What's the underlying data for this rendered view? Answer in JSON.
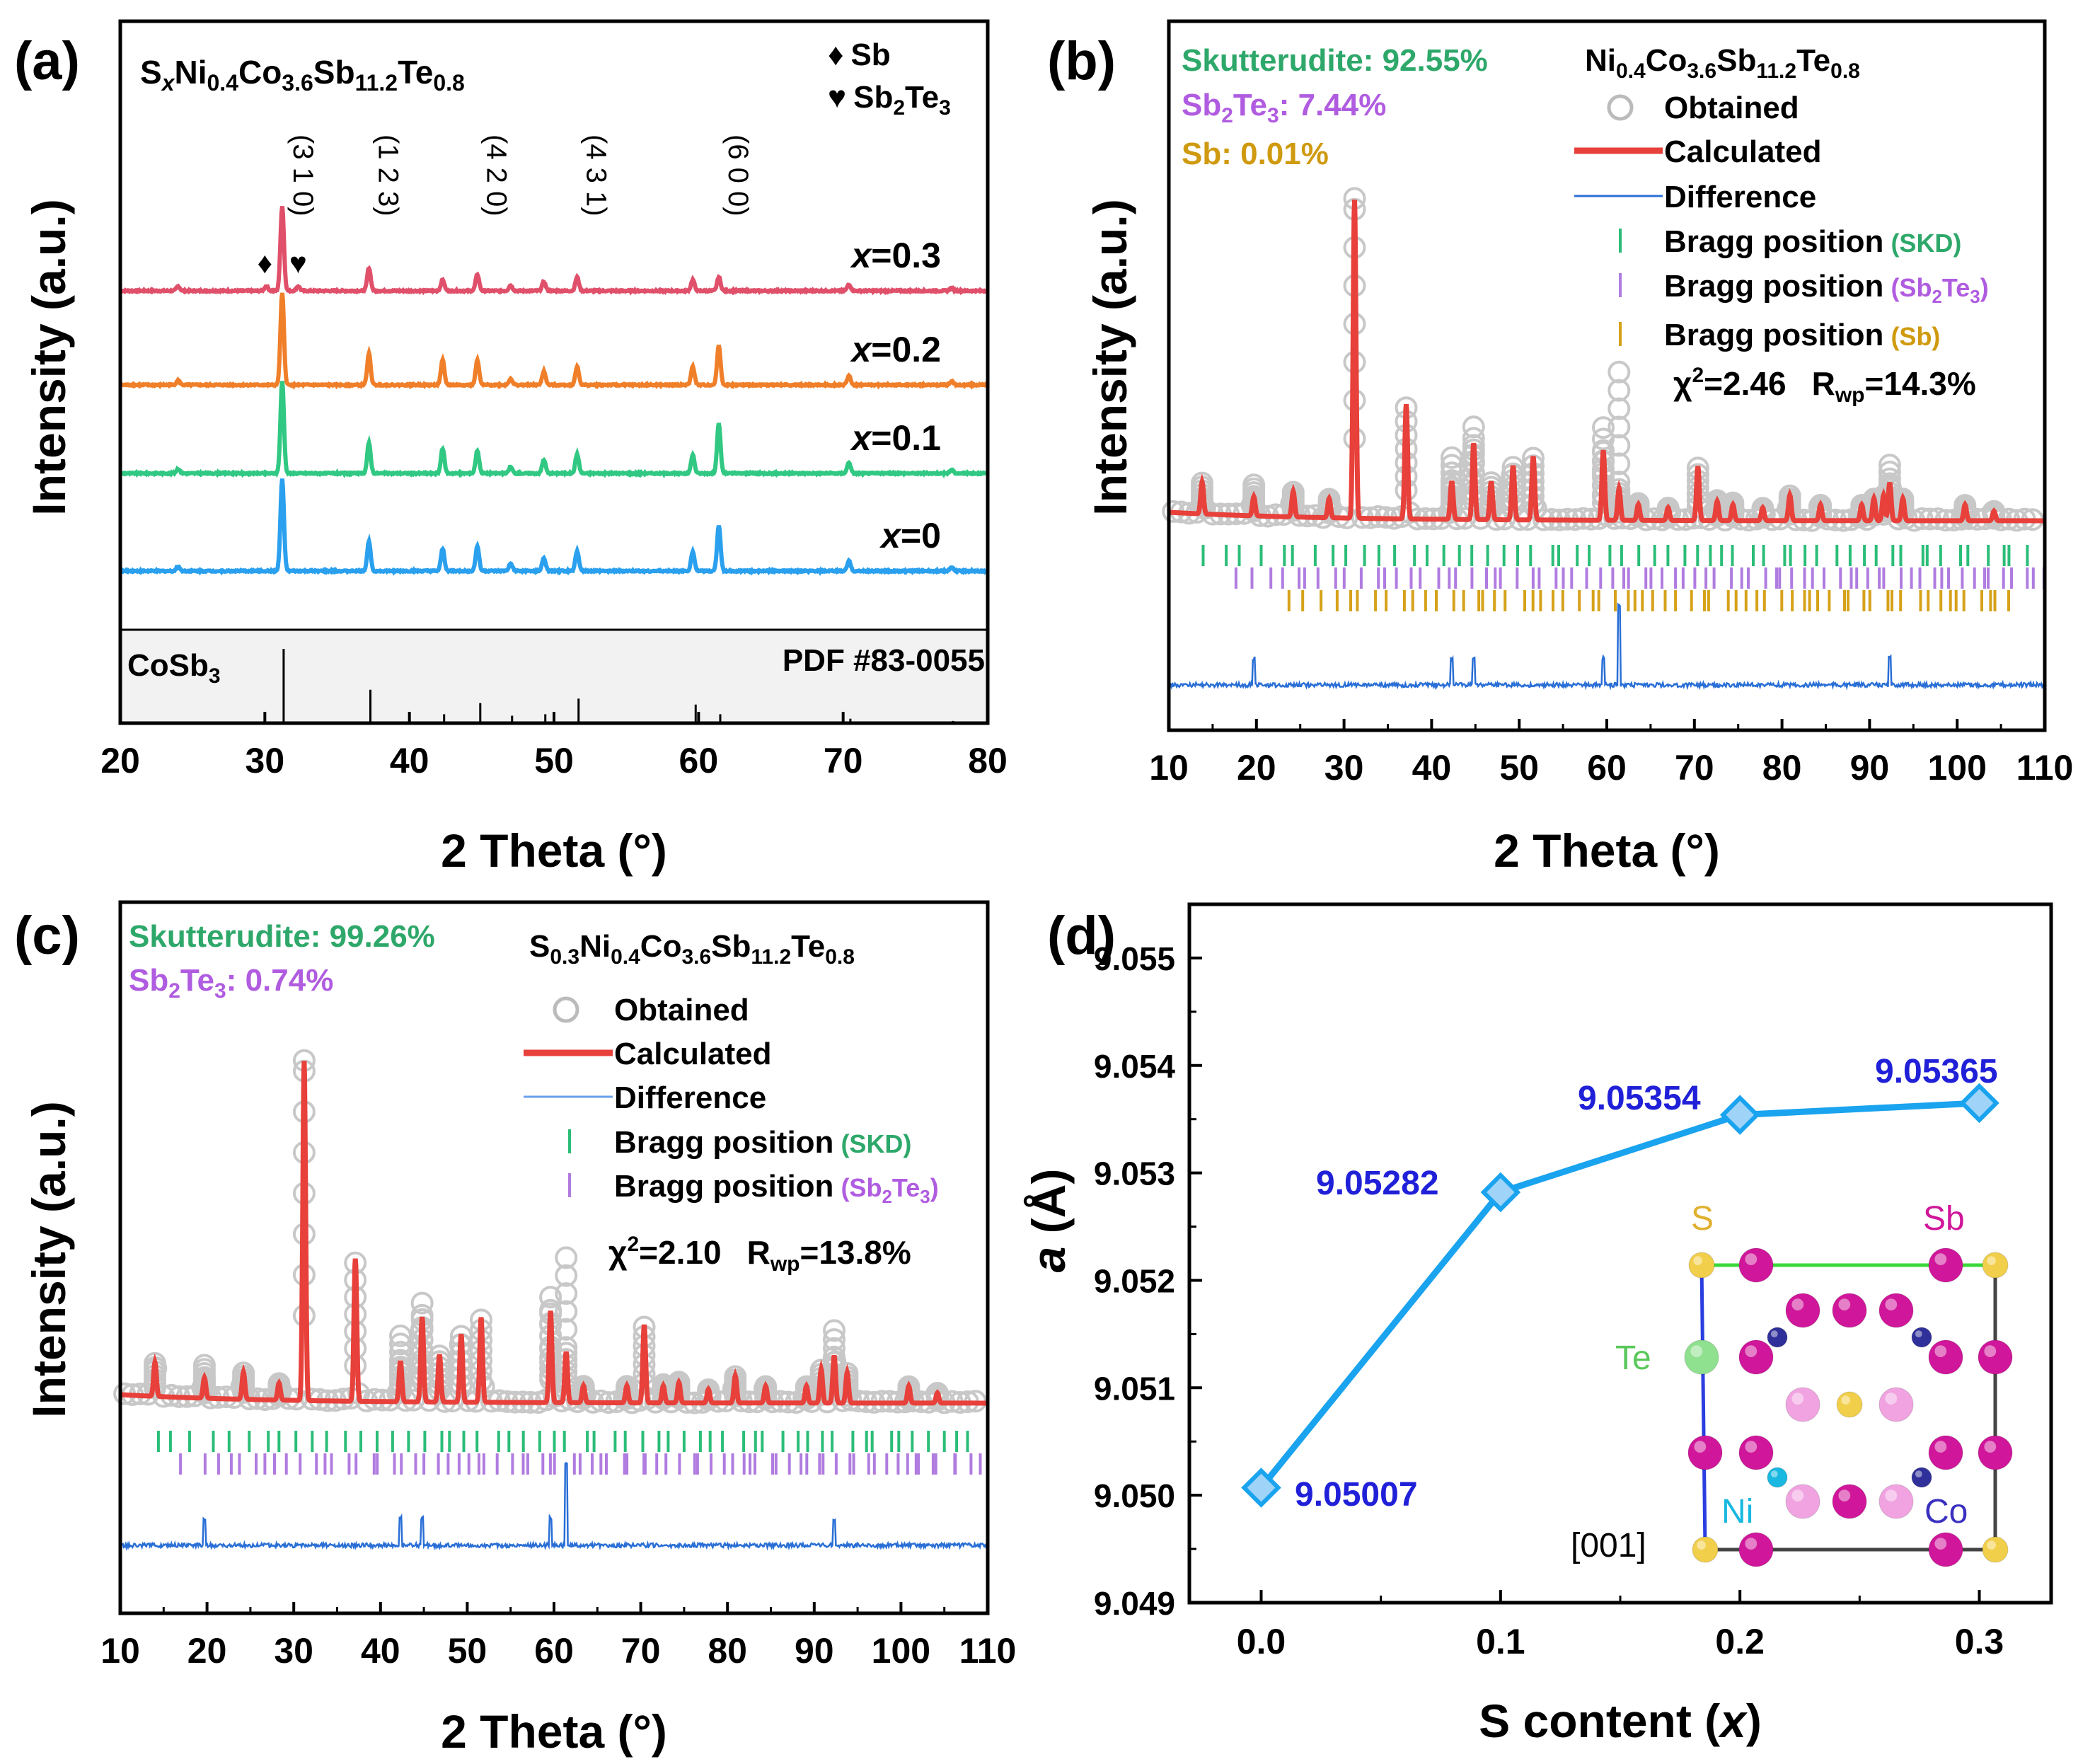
{
  "colors": {
    "red": "#e8403a",
    "green": "#2bbd78",
    "purple": "#b07ce0",
    "gold": "#d6a21a",
    "blue": "#2a6fd6",
    "skd_text": "#2ea86a",
    "sb2te3_text": "#b05ce0",
    "sb_text": "#d09a10",
    "d_line": "#1aa3ee",
    "d_label": "#2020d8",
    "pink": "#f0a3e0",
    "magenta": "#d0169a",
    "yellow": "#f2cf4a",
    "te_green": "#8fe08f",
    "ni_cyan": "#18b8e0",
    "co_navy": "#30309a",
    "pattern_colors": [
      "#e0506a",
      "#f07f2a",
      "#30c882",
      "#2aa0ee"
    ]
  },
  "chart_data": [
    {
      "panel": "(a)",
      "type": "line",
      "xlabel": "2 Theta (°)",
      "ylabel": "Intensity (a.u.)",
      "xlim": [
        20,
        80
      ],
      "xticks": [
        "20",
        "30",
        "40",
        "50",
        "60",
        "70",
        "80"
      ],
      "formula": {
        "s": "S",
        "x": "x",
        "ni": "Ni",
        "ni_sub": "0.4",
        "co": "Co",
        "co_sub": "3.6",
        "sb": "Sb",
        "sb_sub": "11.2",
        "te": "Te",
        "te_sub": "0.8"
      },
      "legend": {
        "diamond": "♦",
        "sb": "Sb",
        "heart": "♥",
        "sb2": "Sb",
        "sb2_sub": "2",
        "te": "Te",
        "te_sub": "3"
      },
      "hkl": [
        {
          "label": "(3 1 0)",
          "x": 31.3
        },
        {
          "label": "(1 2 3)",
          "x": 37.2
        },
        {
          "label": "(4 2 0)",
          "x": 44.7
        },
        {
          "label": "(4 3 1)",
          "x": 51.6
        },
        {
          "label": "(6 0 0)",
          "x": 61.4
        }
      ],
      "impurity_markers": [
        {
          "symbol": "♦",
          "x": 30.0
        },
        {
          "symbol": "♥",
          "x": 32.3
        }
      ],
      "series": [
        {
          "name": "x=0.3",
          "x_prefix": "x",
          "eq": "=0.3",
          "peaks": [
            [
              24,
              0.05
            ],
            [
              31.2,
              0.92
            ],
            [
              37.2,
              0.25
            ],
            [
              42.3,
              0.12
            ],
            [
              44.7,
              0.18
            ],
            [
              47,
              0.06
            ],
            [
              49.3,
              0.1
            ],
            [
              51.6,
              0.15
            ],
            [
              59.6,
              0.12
            ],
            [
              61.4,
              0.15
            ],
            [
              70.4,
              0.07
            ],
            [
              77.5,
              0.03
            ]
          ],
          "phase_peaks": [
            [
              30.1,
              0.05
            ],
            [
              32.3,
              0.05
            ]
          ]
        },
        {
          "name": "x=0.2",
          "x_prefix": "x",
          "eq": "=0.2",
          "peaks": [
            [
              24,
              0.05
            ],
            [
              31.2,
              1.0
            ],
            [
              37.2,
              0.34
            ],
            [
              42.3,
              0.27
            ],
            [
              44.7,
              0.27
            ],
            [
              47,
              0.07
            ],
            [
              49.3,
              0.15
            ],
            [
              51.6,
              0.2
            ],
            [
              59.6,
              0.2
            ],
            [
              61.4,
              0.43
            ],
            [
              70.4,
              0.1
            ],
            [
              77.5,
              0.04
            ]
          ]
        },
        {
          "name": "x=0.1",
          "x_prefix": "x",
          "eq": "=0.1",
          "peaks": [
            [
              24,
              0.05
            ],
            [
              31.2,
              1.0
            ],
            [
              37.2,
              0.33
            ],
            [
              42.3,
              0.27
            ],
            [
              44.7,
              0.25
            ],
            [
              47,
              0.07
            ],
            [
              49.3,
              0.15
            ],
            [
              51.6,
              0.21
            ],
            [
              59.6,
              0.2
            ],
            [
              61.4,
              0.54
            ],
            [
              70.4,
              0.12
            ],
            [
              77.5,
              0.04
            ]
          ]
        },
        {
          "name": "x=0",
          "x_prefix": "x",
          "eq": "=0",
          "peaks": [
            [
              24,
              0.05
            ],
            [
              31.2,
              1.0
            ],
            [
              37.2,
              0.32
            ],
            [
              42.3,
              0.24
            ],
            [
              44.7,
              0.27
            ],
            [
              47,
              0.08
            ],
            [
              49.3,
              0.14
            ],
            [
              51.6,
              0.22
            ],
            [
              59.6,
              0.21
            ],
            [
              61.4,
              0.5
            ],
            [
              70.4,
              0.11
            ],
            [
              77.5,
              0.04
            ]
          ]
        }
      ],
      "reference": {
        "label": "CoSb",
        "label_sub": "3",
        "pdf": "PDF #83-0055",
        "lines": [
          [
            31.3,
            1.0
          ],
          [
            37.3,
            0.45
          ],
          [
            42.4,
            0.12
          ],
          [
            44.9,
            0.27
          ],
          [
            47.1,
            0.1
          ],
          [
            49.4,
            0.12
          ],
          [
            51.7,
            0.33
          ],
          [
            59.8,
            0.25
          ],
          [
            61.5,
            0.12
          ],
          [
            70.5,
            0.06
          ],
          [
            77.6,
            0.03
          ]
        ]
      }
    },
    {
      "panel": "(b)",
      "type": "line",
      "xlabel": "2 Theta (°)",
      "ylabel": "Intensity (a.u.)",
      "xlim": [
        10,
        110
      ],
      "xticks": [
        "10",
        "20",
        "30",
        "40",
        "50",
        "60",
        "70",
        "80",
        "90",
        "100",
        "110"
      ],
      "phases": [
        {
          "name": "Skutterudite: 92.55%",
          "color": "#2ea86a"
        },
        {
          "name_pre": "Sb",
          "name_sub": "2",
          "name_mid": "Te",
          "name_sub2": "3",
          "name_post": ": 7.44%",
          "color": "#b05ce0"
        },
        {
          "name": "Sb: 0.01%",
          "color": "#d09a10"
        }
      ],
      "formula": {
        "ni": "Ni",
        "ni_sub": "0.4",
        "co": "Co",
        "co_sub": "3.6",
        "sb": "Sb",
        "sb_sub": "11.2",
        "te": "Te",
        "te_sub": "0.8"
      },
      "legend": {
        "obtained": "Obtained",
        "calculated": "Calculated",
        "difference": "Difference",
        "bragg": "Bragg position",
        "skd": "(SKD)",
        "sb2te3_pre": "(Sb",
        "sb2te3_sub": "2",
        "sb2te3_mid": "Te",
        "sb2te3_sub2": "3",
        "sb2te3_post": ")",
        "sb": "(Sb)"
      },
      "stats": {
        "chi": "χ",
        "chi_sup": "2",
        "chi_val": "=2.46",
        "r": "R",
        "r_sub": "wp",
        "r_val": "=14.3%"
      },
      "peaks": [
        [
          13.8,
          0.1
        ],
        [
          19.7,
          0.06
        ],
        [
          24.2,
          0.08
        ],
        [
          28.3,
          0.06
        ],
        [
          31.2,
          1.0
        ],
        [
          37.1,
          0.36
        ],
        [
          42.3,
          0.12
        ],
        [
          44.8,
          0.24
        ],
        [
          46.8,
          0.12
        ],
        [
          49.3,
          0.17
        ],
        [
          51.6,
          0.2
        ],
        [
          59.6,
          0.22
        ],
        [
          61.4,
          0.1
        ],
        [
          63.6,
          0.05
        ],
        [
          67,
          0.04
        ],
        [
          70.4,
          0.17
        ],
        [
          72.6,
          0.06
        ],
        [
          74.4,
          0.05
        ],
        [
          77.8,
          0.04
        ],
        [
          80.9,
          0.08
        ],
        [
          84.4,
          0.05
        ],
        [
          89.1,
          0.05
        ],
        [
          90.5,
          0.07
        ],
        [
          91.6,
          0.08
        ],
        [
          92.3,
          0.12
        ],
        [
          93.8,
          0.07
        ],
        [
          100.9,
          0.05
        ],
        [
          104.2,
          0.03
        ]
      ],
      "obs_extra": [
        [
          19.7,
          0.1
        ],
        [
          42.3,
          0.2
        ],
        [
          44.8,
          0.3
        ],
        [
          59.6,
          0.3
        ],
        [
          61.4,
          0.48
        ],
        [
          92.3,
          0.18
        ]
      ],
      "bragg": {
        "skd_count": 56,
        "sb2te3_count": 72,
        "sb_count": 64
      }
    },
    {
      "panel": "(c)",
      "type": "line",
      "xlabel": "2 Theta (°)",
      "ylabel": "Intensity (a.u.)",
      "xlim": [
        10,
        110
      ],
      "xticks": [
        "10",
        "20",
        "30",
        "40",
        "50",
        "60",
        "70",
        "80",
        "90",
        "100",
        "110"
      ],
      "phases": [
        {
          "name": "Skutterudite: 99.26%",
          "color": "#2ea86a"
        },
        {
          "name_pre": "Sb",
          "name_sub": "2",
          "name_mid": "Te",
          "name_sub2": "3",
          "name_post": ": 0.74%",
          "color": "#b05ce0"
        }
      ],
      "formula": {
        "s": "S",
        "s_sub": "0.3",
        "ni": "Ni",
        "ni_sub": "0.4",
        "co": "Co",
        "co_sub": "3.6",
        "sb": "Sb",
        "sb_sub": "11.2",
        "te": "Te",
        "te_sub": "0.8"
      },
      "legend": {
        "obtained": "Obtained",
        "calculated": "Calculated",
        "difference": "Difference",
        "bragg": "Bragg position",
        "skd": "(SKD)",
        "sb2te3_pre": "(Sb",
        "sb2te3_sub": "2",
        "sb2te3_mid": "Te",
        "sb2te3_sub2": "3",
        "sb2te3_post": ")"
      },
      "stats": {
        "chi": "χ",
        "chi_sup": "2",
        "chi_val": "=2.10",
        "r": "R",
        "r_sub": "wp",
        "r_val": "=13.8%"
      },
      "peaks": [
        [
          14,
          0.1
        ],
        [
          19.7,
          0.06
        ],
        [
          24.2,
          0.08
        ],
        [
          28.3,
          0.05
        ],
        [
          31.2,
          1.0
        ],
        [
          37.1,
          0.42
        ],
        [
          42.3,
          0.12
        ],
        [
          44.8,
          0.25
        ],
        [
          46.8,
          0.14
        ],
        [
          49.3,
          0.2
        ],
        [
          51.6,
          0.25
        ],
        [
          59.6,
          0.27
        ],
        [
          61.4,
          0.15
        ],
        [
          63.4,
          0.05
        ],
        [
          68.4,
          0.05
        ],
        [
          70.4,
          0.23
        ],
        [
          72.6,
          0.05
        ],
        [
          74.4,
          0.06
        ],
        [
          77.8,
          0.04
        ],
        [
          80.9,
          0.08
        ],
        [
          84.4,
          0.05
        ],
        [
          89.1,
          0.05
        ],
        [
          90.8,
          0.1
        ],
        [
          92.3,
          0.14
        ],
        [
          93.8,
          0.09
        ],
        [
          100.9,
          0.05
        ],
        [
          104.2,
          0.03
        ]
      ],
      "obs_extra": [
        [
          19.7,
          0.1
        ],
        [
          42.3,
          0.2
        ],
        [
          44.8,
          0.3
        ],
        [
          59.6,
          0.32
        ],
        [
          61.4,
          0.44
        ],
        [
          92.3,
          0.22
        ]
      ],
      "bragg": {
        "skd_count": 56,
        "sb2te3_count": 78
      }
    },
    {
      "panel": "(d)",
      "type": "line",
      "xlabel_pre": "S content (",
      "xlabel_var": "x",
      "xlabel_post": ")",
      "ylabel_var": "a",
      "ylabel_unit": " (Å)",
      "xlim": [
        -0.03,
        0.33
      ],
      "ylim": [
        9.049,
        9.0555
      ],
      "x": [
        0.0,
        0.1,
        0.2,
        0.3
      ],
      "values": [
        9.05007,
        9.05282,
        9.05354,
        9.05365
      ],
      "labels": [
        "9.05007",
        "9.05282",
        "9.05354",
        "9.05365"
      ],
      "xticks": [
        "0.0",
        "0.1",
        "0.2",
        "0.3"
      ],
      "yticks": [
        "9.049",
        "9.050",
        "9.051",
        "9.052",
        "9.053",
        "9.054",
        "9.055"
      ],
      "inset": {
        "s": "S",
        "sb": "Sb",
        "te": "Te",
        "ni": "Ni",
        "co": "Co",
        "zone": "[001]"
      }
    }
  ]
}
